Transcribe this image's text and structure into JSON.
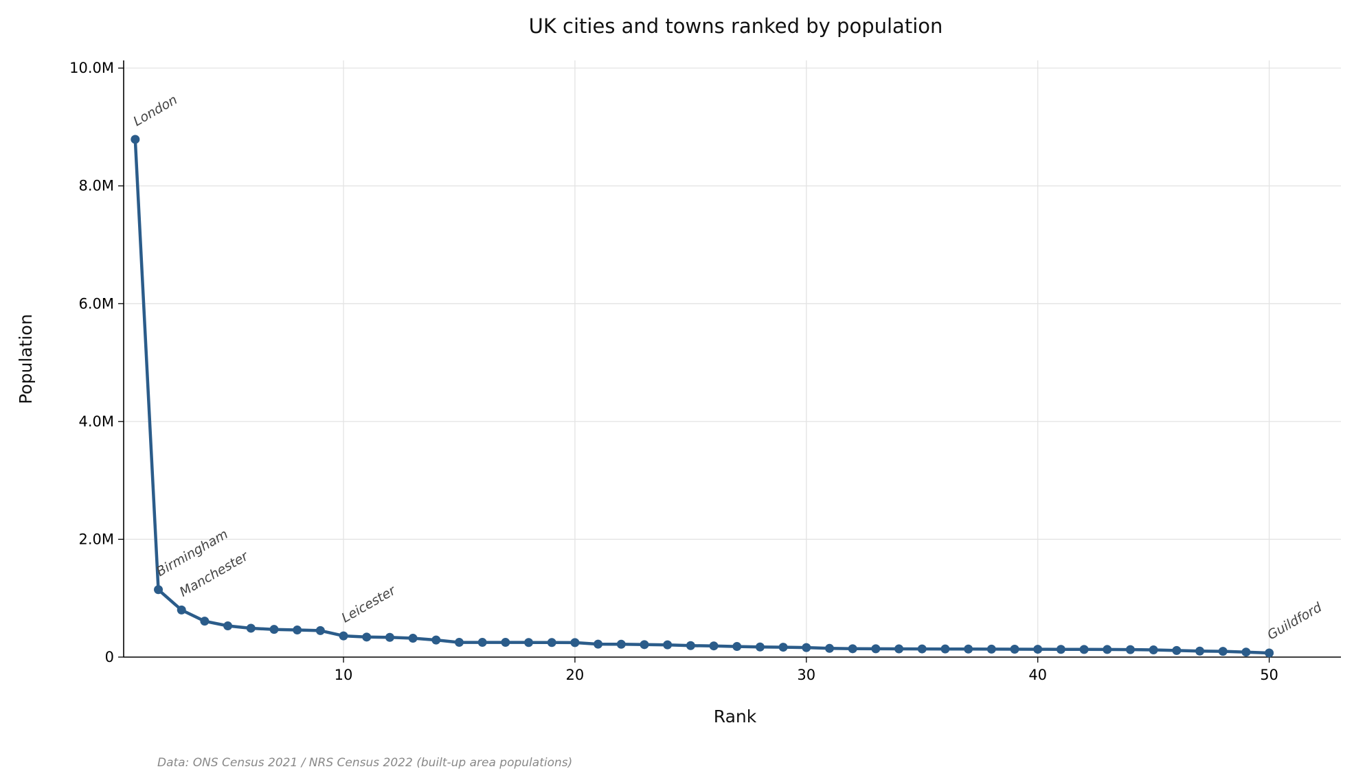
{
  "chart_data": {
    "type": "line",
    "title": "UK cities and towns ranked by population",
    "xlabel": "Rank",
    "ylabel": "Population",
    "xlim": [
      0.5,
      53.1
    ],
    "ylim": [
      0,
      10130000
    ],
    "xticks": [
      10,
      20,
      30,
      40,
      50
    ],
    "xtick_labels": [
      "10",
      "20",
      "30",
      "40",
      "50"
    ],
    "yticks": [
      0,
      2000000,
      4000000,
      6000000,
      8000000,
      10000000
    ],
    "ytick_labels": [
      "0",
      "2.0M",
      "4.0M",
      "6.0M",
      "8.0M",
      "10.0M"
    ],
    "grid": true,
    "color": "#2b5c8a",
    "x": [
      1,
      2,
      3,
      4,
      5,
      6,
      7,
      8,
      9,
      10,
      11,
      12,
      13,
      14,
      15,
      16,
      17,
      18,
      19,
      20,
      21,
      22,
      23,
      24,
      25,
      26,
      27,
      28,
      29,
      30,
      31,
      32,
      33,
      34,
      35,
      36,
      37,
      38,
      39,
      40,
      41,
      42,
      43,
      44,
      45,
      46,
      47,
      48,
      49,
      50
    ],
    "values": [
      8790000,
      1145000,
      800000,
      610000,
      530000,
      490000,
      470000,
      460000,
      450000,
      360000,
      340000,
      335000,
      320000,
      290000,
      250000,
      250000,
      250000,
      248000,
      247000,
      246000,
      220000,
      218000,
      212000,
      208000,
      195000,
      190000,
      180000,
      172000,
      168000,
      162000,
      148000,
      142000,
      141000,
      140000,
      139000,
      138000,
      137000,
      135000,
      134000,
      133000,
      131000,
      130000,
      129000,
      127000,
      122000,
      112000,
      102000,
      98000,
      85000,
      70000
    ],
    "annotations": [
      {
        "rank": 1,
        "label": "London"
      },
      {
        "rank": 2,
        "label": "Birmingham"
      },
      {
        "rank": 3,
        "label": "Manchester"
      },
      {
        "rank": 10,
        "label": "Leicester"
      },
      {
        "rank": 50,
        "label": "Guildford"
      }
    ],
    "source_note": "Data: ONS Census 2021 / NRS Census 2022 (built-up area populations)"
  }
}
